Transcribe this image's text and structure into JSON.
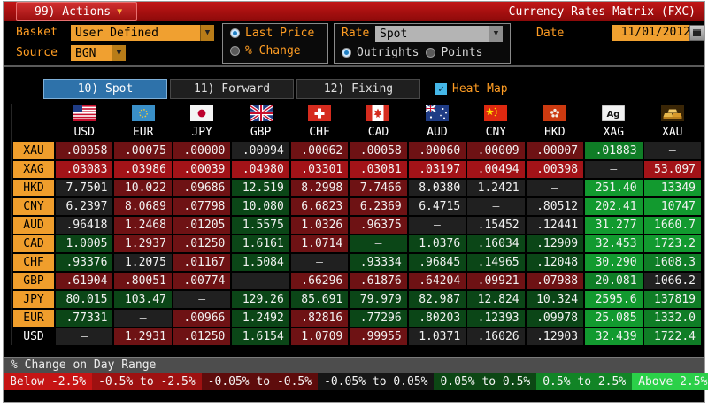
{
  "titlebar": {
    "actions_label": "99) Actions",
    "title": "Currency Rates Matrix (FXC)"
  },
  "controls": {
    "basket_label": "Basket",
    "basket_value": "User Defined",
    "source_label": "Source",
    "source_value": "BGN",
    "price_radios": [
      {
        "label": "Last Price",
        "selected": true
      },
      {
        "label": "% Change",
        "selected": false
      }
    ],
    "rate_label": "Rate",
    "rate_value": "Spot",
    "rate_radios": [
      {
        "label": "Outrights",
        "selected": true
      },
      {
        "label": "Points",
        "selected": false
      }
    ],
    "date_label": "Date",
    "date_value": "11/01/2012"
  },
  "tabs": [
    {
      "label": "10) Spot",
      "key": "spot",
      "active": true
    },
    {
      "label": "11) Forward",
      "key": "forward",
      "active": false
    },
    {
      "label": "12) Fixing",
      "key": "fixing",
      "active": false
    }
  ],
  "heatmap": {
    "label": "Heat Map",
    "checked": true
  },
  "matrix": {
    "columns": [
      "USD",
      "EUR",
      "JPY",
      "GBP",
      "CHF",
      "CAD",
      "AUD",
      "CNY",
      "HKD",
      "XAG",
      "XAU"
    ],
    "flags": [
      "us",
      "eu",
      "jp",
      "gb",
      "ch",
      "ca",
      "au",
      "cn",
      "hk",
      "ag",
      "gold"
    ],
    "cell_colors": {
      "k": "#202020",
      "r1": "#6e1214",
      "r2": "#a31318",
      "g1": "#0b4617",
      "g2": "#129a2f",
      "g3": "#0f7d26"
    },
    "rows": [
      {
        "label": "XAU",
        "cells": [
          [
            ".00058",
            "r1"
          ],
          [
            ".00075",
            "r1"
          ],
          [
            ".00000",
            "r1"
          ],
          [
            ".00094",
            "k"
          ],
          [
            ".00062",
            "r1"
          ],
          [
            ".00058",
            "r1"
          ],
          [
            ".00060",
            "r1"
          ],
          [
            ".00009",
            "r1"
          ],
          [
            ".00007",
            "r1"
          ],
          [
            ".01883",
            "g3"
          ],
          [
            "–",
            "k"
          ]
        ]
      },
      {
        "label": "XAG",
        "cells": [
          [
            ".03083",
            "r2"
          ],
          [
            ".03986",
            "r2"
          ],
          [
            ".00039",
            "r2"
          ],
          [
            ".04980",
            "r2"
          ],
          [
            ".03301",
            "r2"
          ],
          [
            ".03081",
            "r2"
          ],
          [
            ".03197",
            "r2"
          ],
          [
            ".00494",
            "r2"
          ],
          [
            ".00398",
            "r2"
          ],
          [
            "–",
            "k"
          ],
          [
            "53.097",
            "r2"
          ]
        ]
      },
      {
        "label": "HKD",
        "cells": [
          [
            "7.7501",
            "k"
          ],
          [
            "10.022",
            "r1"
          ],
          [
            ".09686",
            "r1"
          ],
          [
            "12.519",
            "g1"
          ],
          [
            "8.2998",
            "r1"
          ],
          [
            "7.7466",
            "r1"
          ],
          [
            "8.0380",
            "k"
          ],
          [
            "1.2421",
            "k"
          ],
          [
            "–",
            "k"
          ],
          [
            "251.40",
            "g2"
          ],
          [
            "13349",
            "g2"
          ]
        ]
      },
      {
        "label": "CNY",
        "cells": [
          [
            "6.2397",
            "k"
          ],
          [
            "8.0689",
            "r1"
          ],
          [
            ".07798",
            "r1"
          ],
          [
            "10.080",
            "g1"
          ],
          [
            "6.6823",
            "r1"
          ],
          [
            "6.2369",
            "r1"
          ],
          [
            "6.4715",
            "k"
          ],
          [
            "–",
            "k"
          ],
          [
            ".80512",
            "k"
          ],
          [
            "202.41",
            "g2"
          ],
          [
            "10747",
            "g2"
          ]
        ]
      },
      {
        "label": "AUD",
        "cells": [
          [
            ".96418",
            "k"
          ],
          [
            "1.2468",
            "r1"
          ],
          [
            ".01205",
            "r1"
          ],
          [
            "1.5575",
            "g1"
          ],
          [
            "1.0326",
            "r1"
          ],
          [
            ".96375",
            "r1"
          ],
          [
            "–",
            "k"
          ],
          [
            ".15452",
            "k"
          ],
          [
            ".12441",
            "k"
          ],
          [
            "31.277",
            "g2"
          ],
          [
            "1660.7",
            "g2"
          ]
        ]
      },
      {
        "label": "CAD",
        "cells": [
          [
            "1.0005",
            "g1"
          ],
          [
            "1.2937",
            "r1"
          ],
          [
            ".01250",
            "r1"
          ],
          [
            "1.6161",
            "g1"
          ],
          [
            "1.0714",
            "r1"
          ],
          [
            "–",
            "g1"
          ],
          [
            "1.0376",
            "g1"
          ],
          [
            ".16034",
            "g1"
          ],
          [
            ".12909",
            "g1"
          ],
          [
            "32.453",
            "g2"
          ],
          [
            "1723.2",
            "g2"
          ]
        ]
      },
      {
        "label": "CHF",
        "cells": [
          [
            ".93376",
            "g1"
          ],
          [
            "1.2075",
            "k"
          ],
          [
            ".01167",
            "r1"
          ],
          [
            "1.5084",
            "g1"
          ],
          [
            "–",
            "k"
          ],
          [
            ".93334",
            "g1"
          ],
          [
            ".96845",
            "g1"
          ],
          [
            ".14965",
            "g1"
          ],
          [
            ".12048",
            "g1"
          ],
          [
            "30.290",
            "g2"
          ],
          [
            "1608.3",
            "g3"
          ]
        ]
      },
      {
        "label": "GBP",
        "cells": [
          [
            ".61904",
            "r1"
          ],
          [
            ".80051",
            "r1"
          ],
          [
            ".00774",
            "r1"
          ],
          [
            "–",
            "k"
          ],
          [
            ".66296",
            "r1"
          ],
          [
            ".61876",
            "r1"
          ],
          [
            ".64204",
            "r1"
          ],
          [
            ".09921",
            "r1"
          ],
          [
            ".07988",
            "r1"
          ],
          [
            "20.081",
            "g3"
          ],
          [
            "1066.2",
            "k"
          ]
        ]
      },
      {
        "label": "JPY",
        "cells": [
          [
            "80.015",
            "g1"
          ],
          [
            "103.47",
            "g1"
          ],
          [
            "–",
            "k"
          ],
          [
            "129.26",
            "g1"
          ],
          [
            "85.691",
            "g1"
          ],
          [
            "79.979",
            "g1"
          ],
          [
            "82.987",
            "g1"
          ],
          [
            "12.824",
            "g1"
          ],
          [
            "10.324",
            "g1"
          ],
          [
            "2595.6",
            "g2"
          ],
          [
            "137819",
            "g3"
          ]
        ]
      },
      {
        "label": "EUR",
        "cells": [
          [
            ".77331",
            "g1"
          ],
          [
            "–",
            "k"
          ],
          [
            ".00966",
            "r1"
          ],
          [
            "1.2492",
            "g1"
          ],
          [
            ".82816",
            "r1"
          ],
          [
            ".77296",
            "g1"
          ],
          [
            ".80203",
            "g1"
          ],
          [
            ".12393",
            "g1"
          ],
          [
            ".09978",
            "g1"
          ],
          [
            "25.085",
            "g2"
          ],
          [
            "1332.0",
            "g3"
          ]
        ]
      },
      {
        "label": "USD",
        "cells": [
          [
            "–",
            "k"
          ],
          [
            "1.2931",
            "r1"
          ],
          [
            ".01250",
            "r1"
          ],
          [
            "1.6154",
            "g1"
          ],
          [
            "1.0709",
            "r1"
          ],
          [
            ".99955",
            "r1"
          ],
          [
            "1.0371",
            "k"
          ],
          [
            ".16026",
            "k"
          ],
          [
            ".12903",
            "k"
          ],
          [
            "32.439",
            "g2"
          ],
          [
            "1722.4",
            "g3"
          ]
        ]
      }
    ]
  },
  "footer": {
    "range_label": "% Change on Day Range",
    "legend": [
      {
        "label": "Below -2.5%",
        "color": "#c61414"
      },
      {
        "label": "-0.5% to -2.5%",
        "color": "#9e1111"
      },
      {
        "label": "-0.05% to -0.5%",
        "color": "#5e0c0c"
      },
      {
        "label": "-0.05% to 0.05%",
        "color": "#161616"
      },
      {
        "label": "0.05% to 0.5%",
        "color": "#0c4714"
      },
      {
        "label": "0.5% to 2.5%",
        "color": "#128426"
      },
      {
        "label": "Above 2.5%",
        "color": "#2bd049"
      }
    ]
  }
}
